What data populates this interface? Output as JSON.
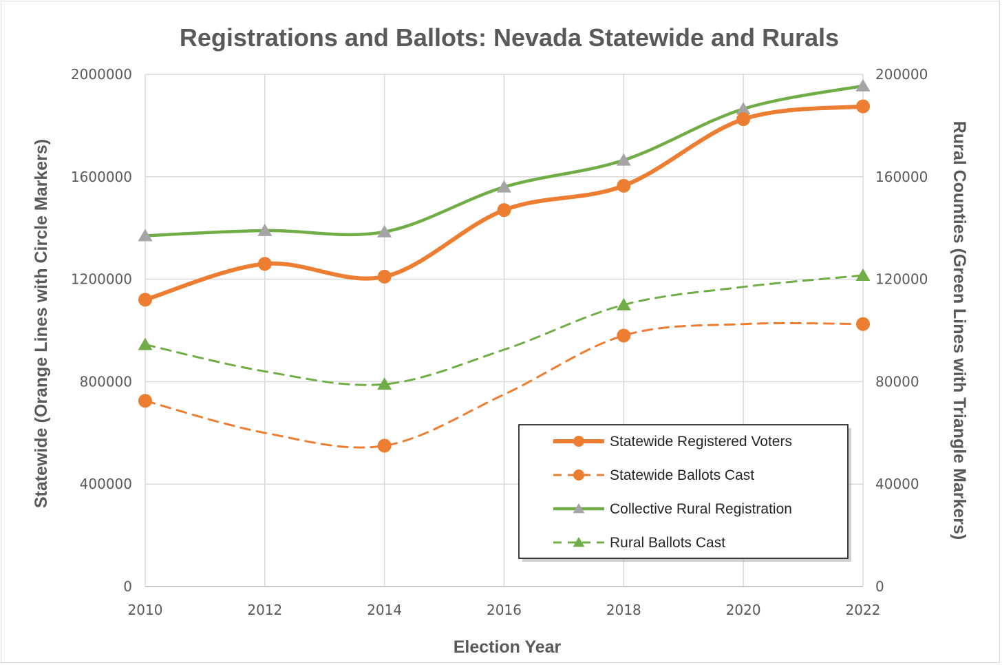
{
  "chart_data": {
    "type": "line",
    "title": "Registrations and Ballots: Nevada Statewide and Rurals",
    "xlabel": "Election Year",
    "ylabel_left": "Statewide (Orange Lines with Circle Markers)",
    "ylabel_right": "Rural Counties (Green Lines with Triangle Markers)",
    "categories": [
      "2010",
      "2012",
      "2014",
      "2016",
      "2018",
      "2020",
      "2022"
    ],
    "y_left_lim": [
      0,
      2000000
    ],
    "y_right_lim": [
      0,
      200000
    ],
    "y_left_ticks": [
      "0",
      "400000",
      "800000",
      "1200000",
      "1600000",
      "2000000"
    ],
    "y_right_ticks": [
      "0",
      "40000",
      "80000",
      "120000",
      "160000",
      "200000"
    ],
    "grid": true,
    "legend_position": "bottom-right",
    "series": [
      {
        "name": "Statewide Registered Voters",
        "axis": "left",
        "color": "#ED7D31",
        "style": "solid",
        "marker": "circle",
        "values": [
          1120000,
          1260000,
          1210000,
          1470000,
          1565000,
          1825000,
          1875000
        ],
        "markers": [
          true,
          true,
          true,
          true,
          true,
          true,
          true
        ]
      },
      {
        "name": "Statewide Ballots Cast",
        "axis": "left",
        "color": "#ED7D31",
        "style": "dashed",
        "marker": "circle",
        "values": [
          725000,
          600000,
          550000,
          750000,
          980000,
          1025000,
          1025000
        ],
        "markers": [
          true,
          false,
          true,
          false,
          true,
          false,
          true
        ]
      },
      {
        "name": "Collective Rural Registration",
        "axis": "right",
        "color": "#70AD47",
        "markerColor": "#A5A5A5",
        "style": "solid",
        "marker": "triangle",
        "values": [
          137000,
          139000,
          138500,
          156000,
          166500,
          186500,
          195500
        ],
        "markers": [
          true,
          true,
          true,
          true,
          true,
          true,
          true
        ]
      },
      {
        "name": "Rural Ballots Cast",
        "axis": "right",
        "color": "#70AD47",
        "style": "dashed",
        "marker": "triangle",
        "values": [
          94500,
          84000,
          79000,
          92500,
          110000,
          117000,
          121500
        ],
        "markers": [
          true,
          false,
          true,
          false,
          true,
          false,
          true
        ]
      }
    ]
  }
}
